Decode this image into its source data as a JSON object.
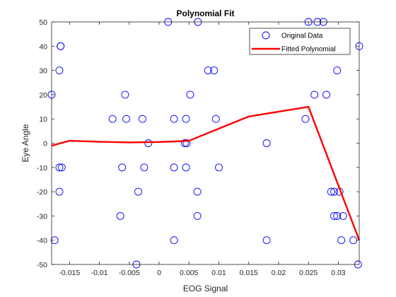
{
  "chart_data": {
    "type": "scatter",
    "title": "Polynomial Fit",
    "xlabel": "EOG Signal",
    "ylabel": "Eye Angle",
    "xlim": [
      -0.018,
      0.0335
    ],
    "ylim": [
      -50,
      50
    ],
    "xticks": [
      -0.015,
      -0.01,
      -0.005,
      0,
      0.005,
      0.01,
      0.015,
      0.02,
      0.025,
      0.03
    ],
    "xtick_labels": [
      "-0.015",
      "-0.01",
      "-0.005",
      "0",
      "0.005",
      "0.01",
      "0.015",
      "0.02",
      "0.025",
      "0.03"
    ],
    "yticks": [
      -50,
      -40,
      -30,
      -20,
      -10,
      0,
      10,
      20,
      30,
      40,
      50
    ],
    "ytick_labels": [
      "-50",
      "-40",
      "-30",
      "-20",
      "-10",
      "0",
      "10",
      "20",
      "30",
      "40",
      "50"
    ],
    "grid": false,
    "legend_position": "top-right",
    "series": [
      {
        "name": "Original Data",
        "style": "markers",
        "marker": "open-circle",
        "color": "#0000ff",
        "points": [
          [
            -0.018,
            20
          ],
          [
            -0.0165,
            40
          ],
          [
            -0.0165,
            40
          ],
          [
            -0.0167,
            30
          ],
          [
            -0.0167,
            -10
          ],
          [
            -0.0163,
            -10
          ],
          [
            -0.0167,
            -20
          ],
          [
            -0.0175,
            -40
          ],
          [
            -0.0078,
            10
          ],
          [
            -0.0057,
            20
          ],
          [
            -0.0055,
            10
          ],
          [
            -0.0062,
            -10
          ],
          [
            -0.0065,
            -30
          ],
          [
            -0.0035,
            -20
          ],
          [
            -0.0028,
            10
          ],
          [
            -0.0025,
            -10
          ],
          [
            -0.0018,
            0
          ],
          [
            -0.0038,
            -50
          ],
          [
            0.0015,
            50
          ],
          [
            0.0025,
            10
          ],
          [
            0.0025,
            -10
          ],
          [
            0.0025,
            -40
          ],
          [
            0.0043,
            0
          ],
          [
            0.0046,
            0
          ],
          [
            0.0045,
            10
          ],
          [
            0.0045,
            -10
          ],
          [
            0.0052,
            20
          ],
          [
            0.0065,
            50
          ],
          [
            0.0064,
            -20
          ],
          [
            0.0064,
            -30
          ],
          [
            0.0082,
            30
          ],
          [
            0.0092,
            30
          ],
          [
            0.0095,
            10
          ],
          [
            0.01,
            -10
          ],
          [
            0.018,
            0
          ],
          [
            0.018,
            -40
          ],
          [
            0.0245,
            10
          ],
          [
            0.025,
            50
          ],
          [
            0.026,
            20
          ],
          [
            0.0265,
            50
          ],
          [
            0.0275,
            50
          ],
          [
            0.028,
            20
          ],
          [
            0.0288,
            -20
          ],
          [
            0.0293,
            -20
          ],
          [
            0.0298,
            30
          ],
          [
            0.0302,
            -20
          ],
          [
            0.0293,
            -30
          ],
          [
            0.0298,
            -30
          ],
          [
            0.0308,
            -30
          ],
          [
            0.0305,
            -40
          ],
          [
            0.0325,
            -40
          ],
          [
            0.0333,
            -50
          ],
          [
            0.0335,
            40
          ]
        ]
      },
      {
        "name": "Fitted Polynomial",
        "style": "line",
        "color": "#ff0000",
        "points": [
          [
            -0.018,
            -1
          ],
          [
            -0.015,
            1
          ],
          [
            -0.01,
            0.6
          ],
          [
            -0.005,
            0.3
          ],
          [
            0,
            0.5
          ],
          [
            0.0035,
            0.8
          ],
          [
            0.005,
            1
          ],
          [
            0.01,
            6
          ],
          [
            0.015,
            11
          ],
          [
            0.02,
            13
          ],
          [
            0.025,
            15
          ],
          [
            0.0335,
            -40
          ]
        ]
      }
    ]
  }
}
